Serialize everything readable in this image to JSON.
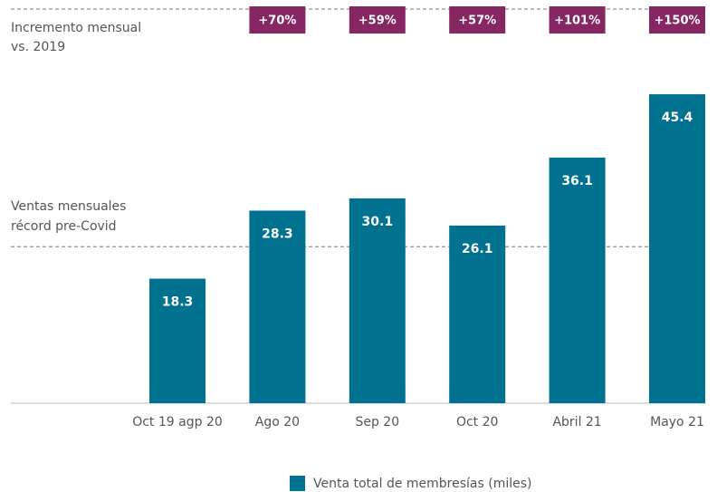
{
  "chart_data": {
    "type": "bar",
    "categories": [
      "Oct 19 agp 20",
      "Ago 20",
      "Sep 20",
      "Oct 20",
      "Abril 21",
      "Mayo 21"
    ],
    "series": [
      {
        "name": "Venta total de membresías (miles)",
        "color": "#00718f",
        "values": [
          18.3,
          28.3,
          30.1,
          26.1,
          36.1,
          45.4
        ]
      }
    ],
    "ylim": [
      0,
      50
    ],
    "increment_title": [
      "Incremento mensual",
      "vs. 2019"
    ],
    "increment_values": [
      null,
      70,
      59,
      57,
      101,
      150
    ],
    "increment_labels": [
      null,
      "+70%",
      "+59%",
      "+57%",
      "+101%",
      "+150%"
    ],
    "increment_color": "#862663",
    "reference_line": {
      "value": 23,
      "label": [
        "Ventas mensuales",
        "récord pre-Covid"
      ]
    }
  }
}
